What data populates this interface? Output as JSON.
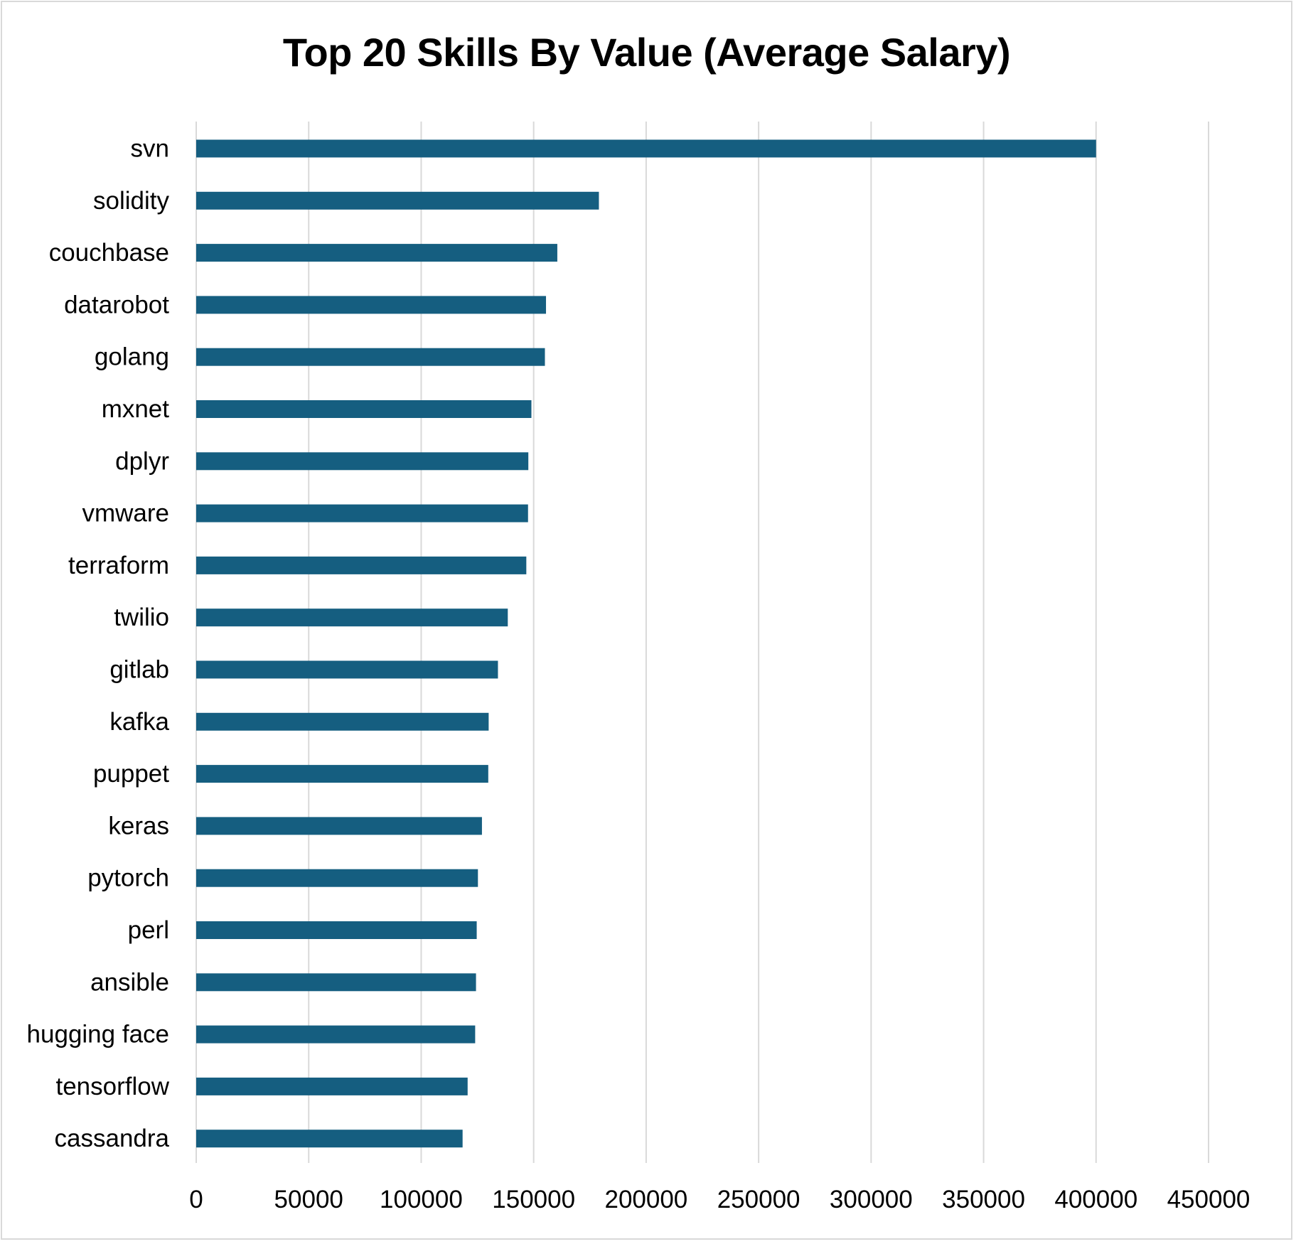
{
  "colors": {
    "bar": "#155e80",
    "gridline": "#d9d9d9",
    "border": "#d9d9d9",
    "text": "#000000"
  },
  "chart_data": {
    "type": "bar",
    "orientation": "horizontal",
    "title": "Top 20 Skills By Value (Average Salary)",
    "xlabel": "",
    "ylabel": "",
    "xlim": [
      0,
      450000
    ],
    "x_ticks": [
      0,
      50000,
      100000,
      150000,
      200000,
      250000,
      300000,
      350000,
      400000,
      450000
    ],
    "grid": true,
    "legend": "none",
    "categories": [
      "svn",
      "solidity",
      "couchbase",
      "datarobot",
      "golang",
      "mxnet",
      "dplyr",
      "vmware",
      "terraform",
      "twilio",
      "gitlab",
      "kafka",
      "puppet",
      "keras",
      "pytorch",
      "perl",
      "ansible",
      "hugging face",
      "tensorflow",
      "cassandra"
    ],
    "values": [
      400000,
      179000,
      160515,
      155486,
      155000,
      149000,
      147633,
      147500,
      146734,
      138500,
      134126,
      129999,
      129820,
      127013,
      125226,
      124686,
      124370,
      124000,
      120647,
      118407
    ]
  }
}
